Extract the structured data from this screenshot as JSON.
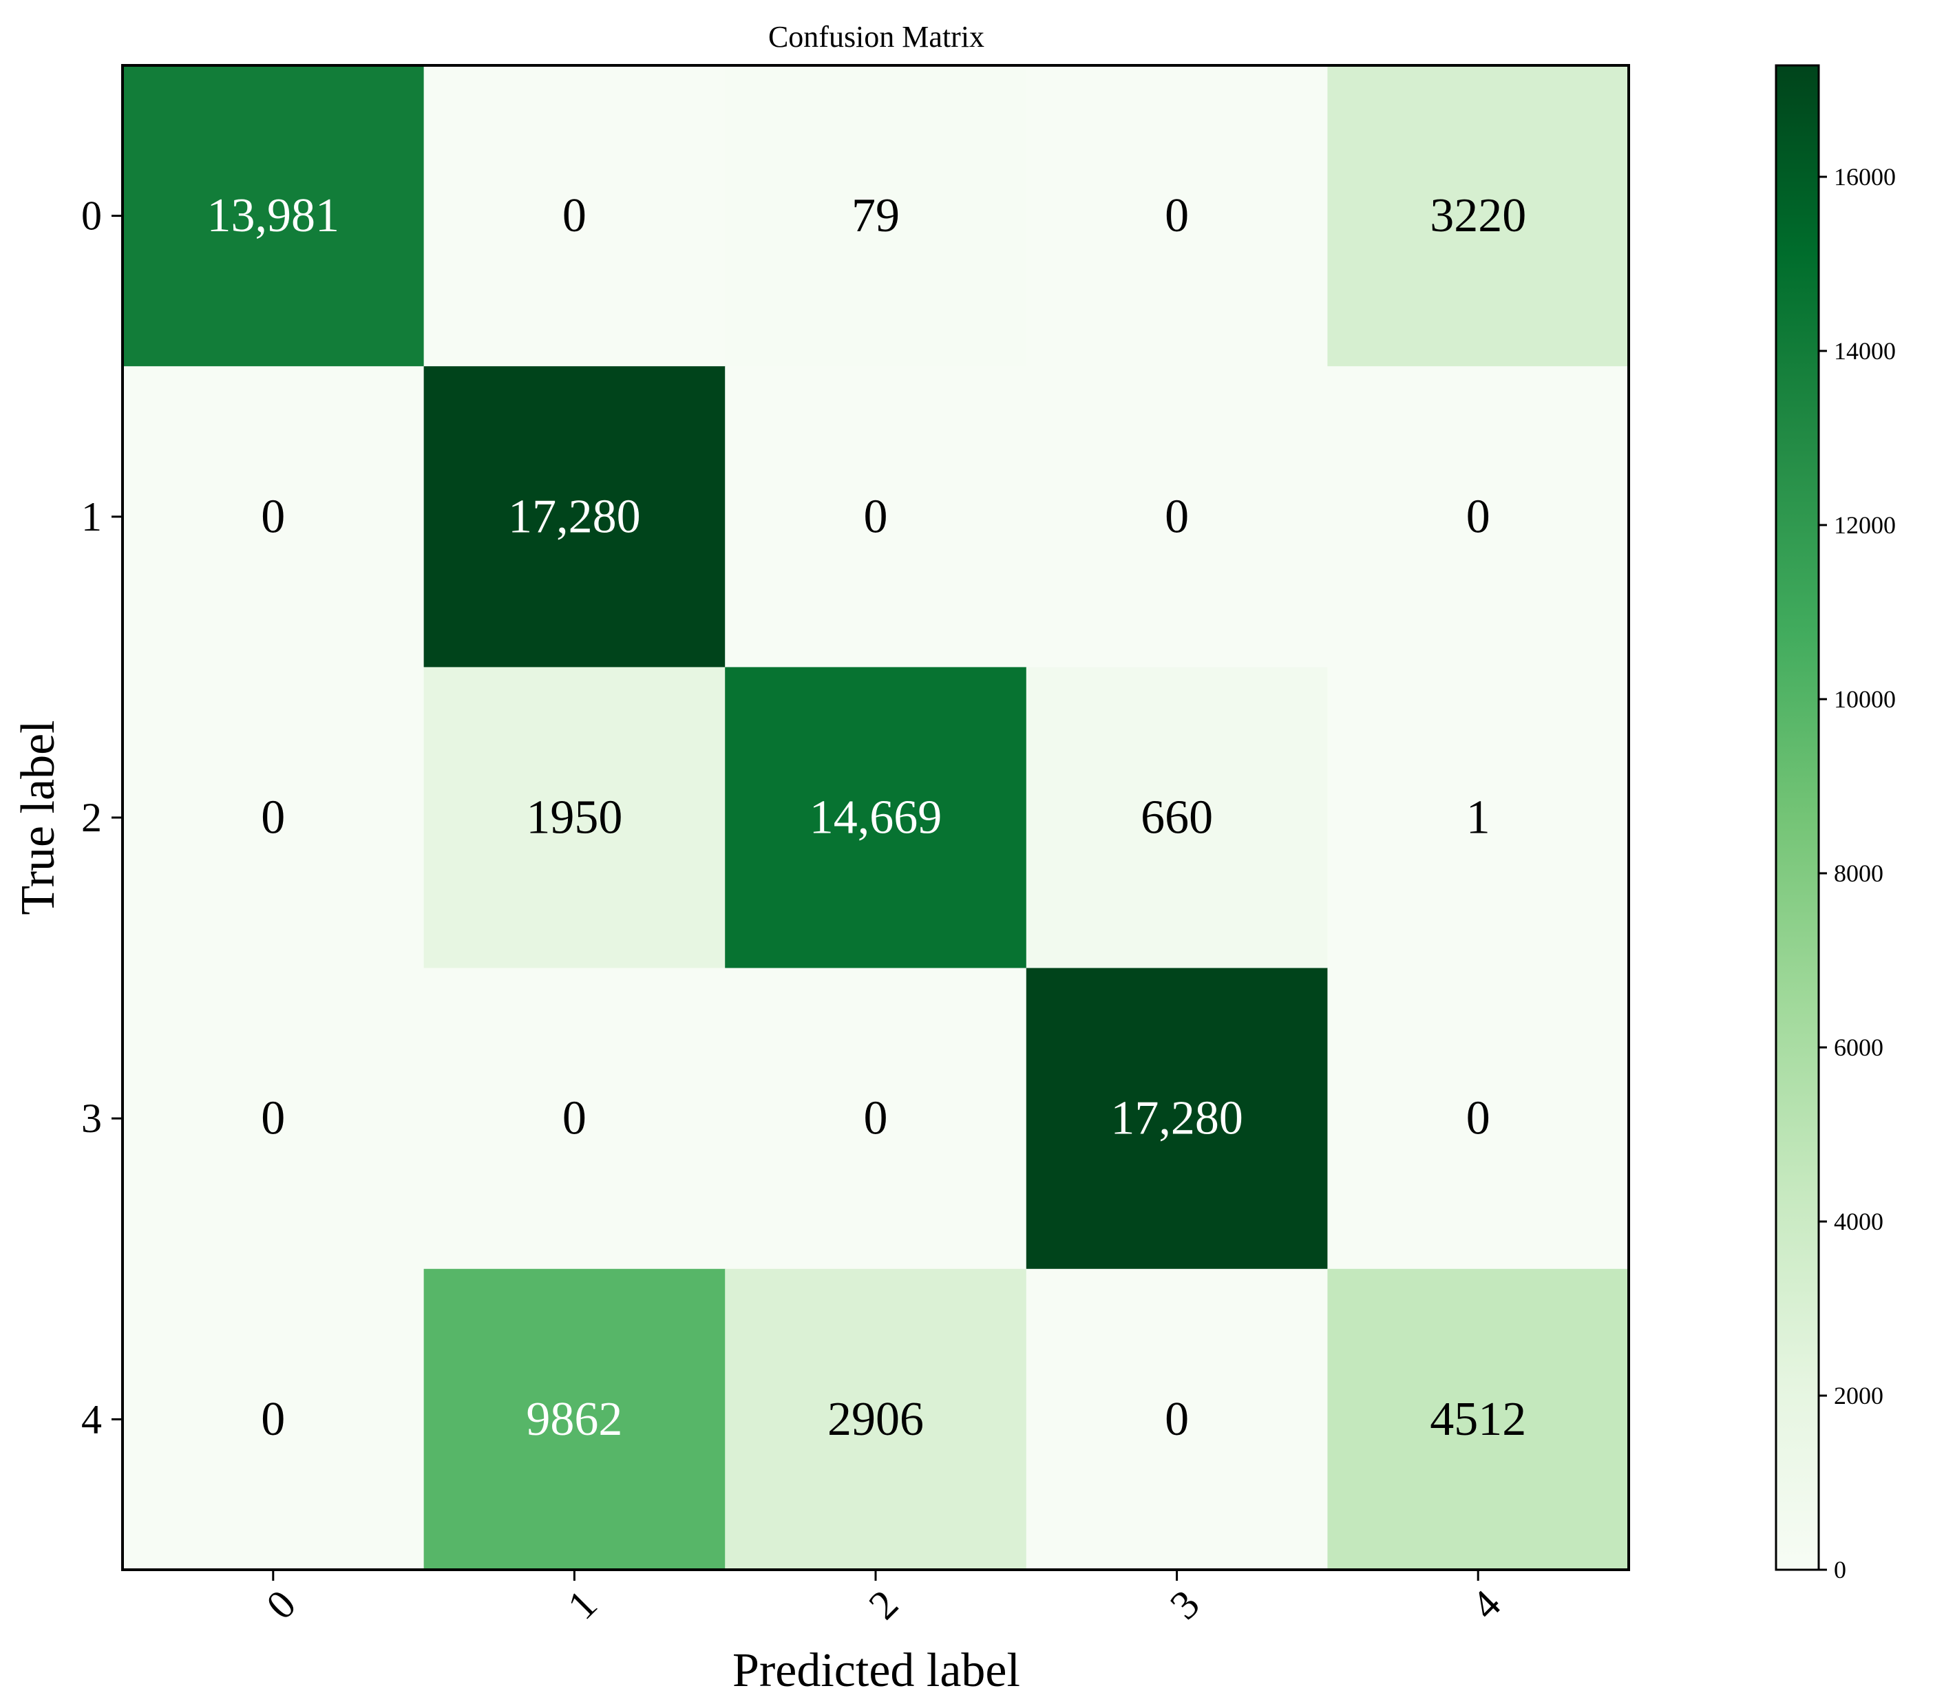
{
  "chart_data": {
    "type": "heatmap",
    "title": "Confusion Matrix",
    "xlabel": "Predicted label",
    "ylabel": "True label",
    "x_categories": [
      "0",
      "1",
      "2",
      "3",
      "4"
    ],
    "y_categories": [
      "0",
      "1",
      "2",
      "3",
      "4"
    ],
    "values": [
      [
        13981,
        0,
        79,
        0,
        3220
      ],
      [
        0,
        17280,
        0,
        0,
        0
      ],
      [
        0,
        1950,
        14669,
        660,
        1
      ],
      [
        0,
        0,
        0,
        17280,
        0
      ],
      [
        0,
        9862,
        2906,
        0,
        4512
      ]
    ],
    "cell_labels": [
      [
        "13,981",
        "0",
        "79",
        "0",
        "3220"
      ],
      [
        "0",
        "17,280",
        "0",
        "0",
        "0"
      ],
      [
        "0",
        "1950",
        "14,669",
        "660",
        "1"
      ],
      [
        "0",
        "0",
        "0",
        "17,280",
        "0"
      ],
      [
        "0",
        "9862",
        "2906",
        "0",
        "4512"
      ]
    ],
    "colormap": "Greens",
    "colormap_stops": [
      "#f7fcf5",
      "#e5f5e0",
      "#c7e9c0",
      "#a1d99b",
      "#74c476",
      "#41ab5d",
      "#238b45",
      "#006d2c",
      "#00441b"
    ],
    "color_range": [
      0,
      17280
    ],
    "colorbar_ticks": [
      0,
      2000,
      4000,
      6000,
      8000,
      10000,
      12000,
      14000,
      16000
    ],
    "colorbar_tick_labels": [
      "0",
      "2000",
      "4000",
      "6000",
      "8000",
      "10000",
      "12000",
      "14000",
      "16000"
    ],
    "text_color_threshold": 8640,
    "text_colors": {
      "light": "#ffffff",
      "dark": "#000000"
    },
    "legend": "colorbar-right"
  }
}
